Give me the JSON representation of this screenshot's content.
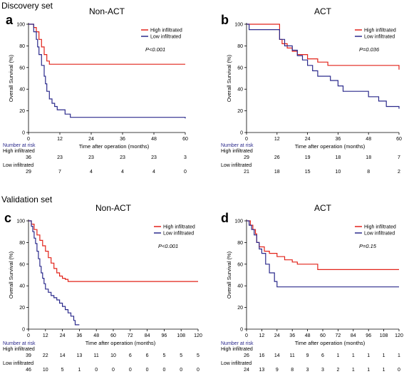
{
  "sections": [
    {
      "title": "Discovery set"
    },
    {
      "title": "Validation set"
    }
  ],
  "chart_data": [
    {
      "panel": "a",
      "title": "Non-ACT",
      "type": "line",
      "pvalue": "P<0.001",
      "xlabel": "Time after operation (months)",
      "ylabel": "Overall Survival (%)",
      "xlim": [
        0,
        60
      ],
      "ylim": [
        0,
        100
      ],
      "xticks": [
        "0",
        "12",
        "24",
        "36",
        "48",
        "60"
      ],
      "yticks": [
        "0",
        "20",
        "40",
        "60",
        "80",
        "100"
      ],
      "legend_position": "top-right",
      "series": [
        {
          "name": "High infiltrated",
          "color": "#e2231a",
          "x": [
            0,
            2,
            3,
            4,
            5,
            6,
            7,
            8,
            60
          ],
          "y": [
            100,
            97,
            93,
            86,
            79,
            72,
            66,
            63,
            63
          ]
        },
        {
          "name": "Low infiltrated",
          "color": "#2b2a8c",
          "x": [
            0,
            2,
            3,
            3.5,
            4,
            5,
            6,
            6.5,
            7,
            8,
            9,
            10,
            11,
            12,
            14,
            16,
            24,
            48,
            60
          ],
          "y": [
            100,
            93,
            86,
            79,
            72,
            62,
            52,
            45,
            38,
            31,
            27,
            24,
            21,
            21,
            17,
            14,
            14,
            14,
            13
          ]
        }
      ],
      "risk_table": {
        "header": "Number at risk",
        "x": [
          "0",
          "12",
          "24",
          "36",
          "48",
          "60"
        ],
        "rows": [
          {
            "label": "High infiltrated",
            "values": [
              "36",
              "23",
              "23",
              "23",
              "23",
              "3"
            ]
          },
          {
            "label": "Low infiltrated",
            "values": [
              "29",
              "7",
              "4",
              "4",
              "4",
              "0"
            ]
          }
        ]
      }
    },
    {
      "panel": "b",
      "title": "ACT",
      "type": "line",
      "pvalue": "P=0.036",
      "xlabel": "Time after operation (months)",
      "ylabel": "Overall Survival (%)",
      "xlim": [
        0,
        60
      ],
      "ylim": [
        0,
        100
      ],
      "xticks": [
        "0",
        "12",
        "24",
        "36",
        "48",
        "60"
      ],
      "yticks": [
        "0",
        "20",
        "40",
        "60",
        "80",
        "100"
      ],
      "legend_position": "top-right",
      "series": [
        {
          "name": "High infiltrated",
          "color": "#e2231a",
          "x": [
            0,
            12,
            13,
            14,
            16,
            18,
            20,
            24,
            28,
            32,
            60
          ],
          "y": [
            100,
            100,
            86,
            82,
            78,
            75,
            72,
            68,
            65,
            62,
            58
          ]
        },
        {
          "name": "Low infiltrated",
          "color": "#2b2a8c",
          "x": [
            0,
            1,
            12,
            13,
            15,
            18,
            20,
            22,
            24,
            26,
            28,
            33,
            36,
            38,
            44,
            48,
            52,
            55,
            58,
            60
          ],
          "y": [
            100,
            95,
            95,
            86,
            80,
            76,
            71,
            67,
            62,
            57,
            52,
            48,
            43,
            38,
            38,
            33,
            29,
            24,
            24,
            22
          ]
        }
      ],
      "risk_table": {
        "header": "Number at risk",
        "x": [
          "0",
          "12",
          "24",
          "36",
          "48",
          "60"
        ],
        "rows": [
          {
            "label": "High infiltrated",
            "values": [
              "29",
              "26",
              "19",
              "18",
              "18",
              "7"
            ]
          },
          {
            "label": "Low infiltrated",
            "values": [
              "21",
              "18",
              "15",
              "10",
              "8",
              "2"
            ]
          }
        ]
      }
    },
    {
      "panel": "c",
      "title": "Non-ACT",
      "type": "line",
      "pvalue": "P<0.001",
      "xlabel": "Time after operation (months)",
      "ylabel": "Overall Survival (%)",
      "xlim": [
        0,
        120
      ],
      "ylim": [
        0,
        100
      ],
      "xticks": [
        "0",
        "12",
        "24",
        "36",
        "48",
        "60",
        "72",
        "84",
        "96",
        "108",
        "120"
      ],
      "yticks": [
        "0",
        "20",
        "40",
        "60",
        "80",
        "100"
      ],
      "legend_position": "top-right",
      "series": [
        {
          "name": "High infiltrated",
          "color": "#e2231a",
          "x": [
            0,
            2,
            4,
            6,
            8,
            10,
            12,
            14,
            16,
            18,
            20,
            22,
            24,
            26,
            28,
            30,
            120
          ],
          "y": [
            100,
            97,
            92,
            87,
            82,
            77,
            72,
            66,
            61,
            56,
            52,
            49,
            47,
            46,
            44,
            44,
            44
          ]
        },
        {
          "name": "Low infiltrated",
          "color": "#2b2a8c",
          "x": [
            0,
            2,
            3,
            4,
            5,
            6,
            7,
            8,
            9,
            10,
            11,
            12,
            14,
            16,
            18,
            20,
            22,
            24,
            26,
            28,
            30,
            32,
            33,
            36
          ],
          "y": [
            100,
            95,
            90,
            84,
            79,
            72,
            65,
            58,
            52,
            47,
            42,
            37,
            34,
            31,
            29,
            27,
            24,
            21,
            18,
            15,
            12,
            8,
            4,
            4
          ]
        }
      ],
      "risk_table": {
        "header": "Number at risk",
        "x": [
          "0",
          "12",
          "24",
          "36",
          "48",
          "60",
          "72",
          "84",
          "96",
          "108",
          "120"
        ],
        "rows": [
          {
            "label": "High infiltrated",
            "values": [
              "39",
              "22",
              "14",
              "13",
              "11",
              "10",
              "6",
              "6",
              "5",
              "5",
              "5"
            ]
          },
          {
            "label": "Low infiltrated",
            "values": [
              "46",
              "10",
              "5",
              "1",
              "0",
              "0",
              "0",
              "0",
              "0",
              "0",
              "0"
            ]
          }
        ]
      }
    },
    {
      "panel": "d",
      "title": "ACT",
      "type": "line",
      "pvalue": "P=0.15",
      "xlabel": "Time after operation (months)",
      "ylabel": "Overall Survival (%)",
      "xlim": [
        0,
        120
      ],
      "ylim": [
        0,
        100
      ],
      "xticks": [
        "0",
        "12",
        "24",
        "36",
        "48",
        "60",
        "72",
        "84",
        "96",
        "108",
        "120"
      ],
      "yticks": [
        "0",
        "20",
        "40",
        "60",
        "80",
        "100"
      ],
      "legend_position": "top-right",
      "series": [
        {
          "name": "High infiltrated",
          "color": "#e2231a",
          "x": [
            0,
            3,
            5,
            7,
            8,
            10,
            14,
            18,
            24,
            30,
            36,
            40,
            56,
            60,
            120
          ],
          "y": [
            100,
            96,
            92,
            88,
            80,
            76,
            72,
            70,
            67,
            64,
            62,
            60,
            55,
            55,
            55
          ]
        },
        {
          "name": "Low infiltrated",
          "color": "#2b2a8c",
          "x": [
            0,
            2,
            4,
            6,
            8,
            10,
            12,
            15,
            18,
            22,
            24,
            120
          ],
          "y": [
            100,
            96,
            92,
            87,
            80,
            74,
            70,
            60,
            52,
            44,
            39,
            39
          ]
        }
      ],
      "risk_table": {
        "header": "Number at risk",
        "x": [
          "0",
          "12",
          "24",
          "36",
          "48",
          "60",
          "72",
          "84",
          "96",
          "108",
          "120"
        ],
        "rows": [
          {
            "label": "High infiltrated",
            "values": [
              "26",
              "16",
              "14",
              "11",
              "9",
              "6",
              "1",
              "1",
              "1",
              "1",
              "1"
            ]
          },
          {
            "label": "Low infiltrated",
            "values": [
              "24",
              "13",
              "9",
              "8",
              "3",
              "3",
              "2",
              "1",
              "1",
              "1",
              "0"
            ]
          }
        ]
      }
    }
  ]
}
